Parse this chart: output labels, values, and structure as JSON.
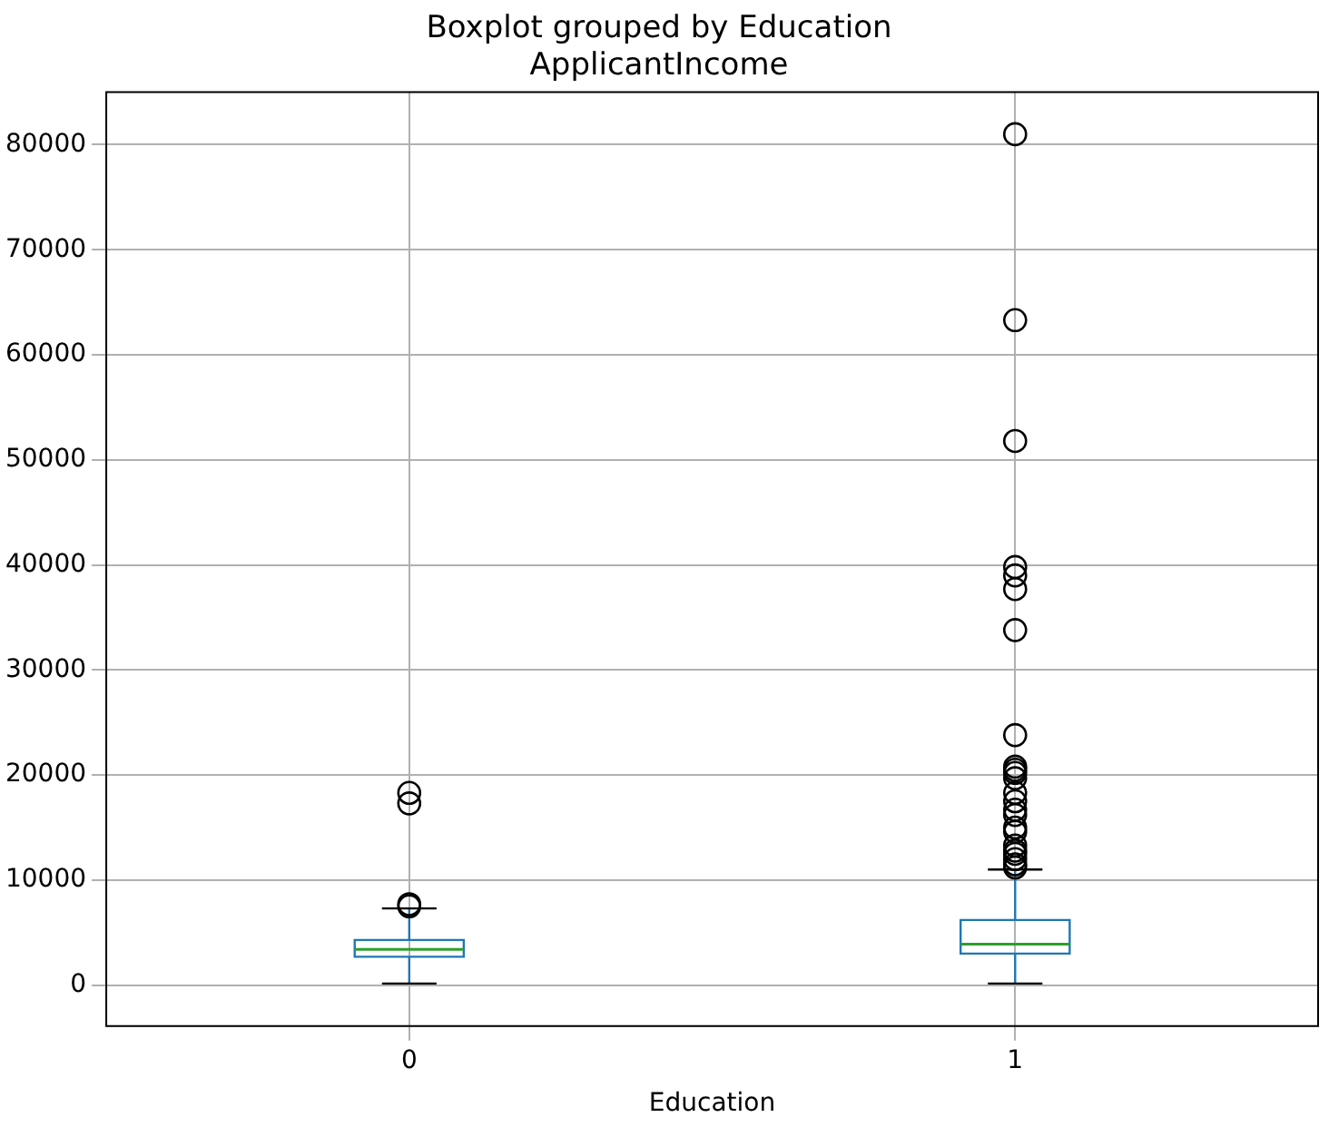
{
  "chart_data": {
    "type": "box",
    "title": "Boxplot grouped by Education",
    "subtitle": "ApplicantIncome",
    "xlabel": "Education",
    "categories": [
      "0",
      "1"
    ],
    "boxes": [
      {
        "low": 150,
        "q1": 2700,
        "median": 3400,
        "q3": 4300,
        "high": 7300,
        "outliers": [
          7500,
          7700,
          17300,
          18300
        ]
      },
      {
        "low": 150,
        "q1": 3000,
        "median": 3900,
        "q3": 6200,
        "high": 11000,
        "outliers": [
          81000,
          63300,
          51800,
          39800,
          39000,
          37700,
          33800,
          23800,
          20800,
          20500,
          20200,
          19700,
          18300,
          17500,
          16700,
          16200,
          15000,
          14600,
          13300,
          12800,
          12500,
          12000,
          11500,
          11200
        ]
      }
    ],
    "color": "#1f77b4",
    "ylim": [
      -3900,
      85000
    ],
    "yticks": [
      0,
      10000,
      20000,
      30000,
      40000,
      50000,
      60000,
      70000,
      80000
    ],
    "grid": true
  }
}
